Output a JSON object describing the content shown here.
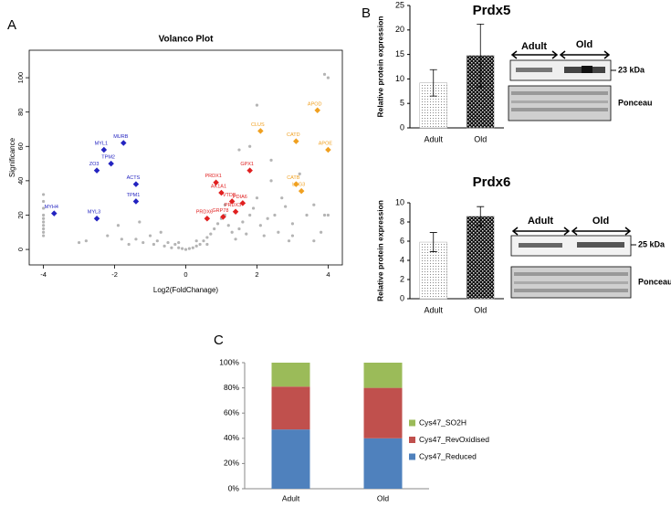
{
  "panel_labels": [
    "A",
    "B",
    "C"
  ],
  "blots": [
    {
      "groups": [
        "Adult",
        "Old"
      ],
      "band": "23 kDa",
      "stain": "Ponceau"
    },
    {
      "groups": [
        "Adult",
        "Old"
      ],
      "band": "25 kDa",
      "stain": "Ponceau"
    }
  ],
  "chart_data": [
    {
      "type": "scatter",
      "title": "Volanco Plot",
      "xlabel": "Log2(FoldChanage)",
      "ylabel": "Significance",
      "xlim": [
        -4.4,
        4.4
      ],
      "ylim": [
        -9,
        116
      ],
      "xticks": [
        -4,
        -2,
        0,
        2,
        4
      ],
      "yticks": [
        0,
        20,
        40,
        60,
        80,
        100
      ],
      "series": [
        {
          "color": "#b4b4b4",
          "x": [
            -4,
            -4,
            -4,
            -4,
            -4,
            -4,
            -4,
            -4,
            -4,
            -4,
            4,
            4,
            3.9,
            3.9,
            -3,
            -2.8,
            -2.2,
            -1.9,
            -1.6,
            -1.4,
            -1.2,
            -1,
            -0.9,
            -0.8,
            -0.6,
            -0.5,
            -0.4,
            -0.3,
            -0.2,
            -0.1,
            0,
            0.1,
            0.2,
            0.3,
            0.4,
            0.5,
            0.6,
            0.7,
            0.8,
            0.9,
            1,
            1.1,
            1.2,
            1.3,
            1.4,
            1.5,
            1.6,
            1.7,
            1.8,
            1.9,
            2,
            2.1,
            2.2,
            2.3,
            2.4,
            2.5,
            2.6,
            2.8,
            3,
            3.2,
            3.4,
            3.6,
            3.8,
            3,
            1.8,
            1.5,
            2.7,
            -0.7,
            0.3,
            1.1,
            2.9,
            3.6,
            2,
            -1.8,
            0.6,
            -0.2,
            -1.3,
            2.4
          ],
          "y": [
            8,
            10,
            12,
            14,
            16,
            18,
            20,
            24,
            28,
            32,
            20,
            100,
            102,
            20,
            4,
            5,
            8,
            14,
            3,
            6,
            4,
            8,
            3,
            5,
            2,
            4,
            1,
            3,
            1,
            0.5,
            0,
            0.5,
            1,
            2,
            3,
            5,
            7,
            9,
            12,
            15,
            18,
            20,
            14,
            10,
            6,
            12,
            16,
            9,
            20,
            24,
            30,
            14,
            8,
            18,
            40,
            20,
            10,
            25,
            15,
            44,
            20,
            26,
            10,
            8,
            60,
            58,
            30,
            10,
            5,
            26,
            5,
            5,
            84,
            6,
            3,
            4,
            16,
            52
          ]
        },
        {
          "color": "#2323c0",
          "x": [
            -3.7,
            -2.5,
            -2.5,
            -2.3,
            -2.1,
            -1.75,
            -1.4,
            -1.4
          ],
          "y": [
            21,
            18,
            46,
            58,
            50,
            62,
            38,
            28
          ],
          "labels": [
            "MYH4",
            "MYL3",
            "ZO3",
            "MYL1",
            "TPM2",
            "MURB",
            "ACTS",
            "TPM1"
          ]
        },
        {
          "color": "#e02020",
          "x": [
            0.85,
            1,
            1.8,
            1.6,
            1.3,
            0.6,
            1.05,
            1.4
          ],
          "y": [
            39,
            33,
            46,
            27,
            28,
            18,
            19,
            22
          ],
          "labels": [
            "PRDX1",
            "AK1A1",
            "GPX1",
            "PDIA6",
            "VTDB",
            "PRDX6",
            "GRP78",
            "PRDX3"
          ]
        },
        {
          "color": "#f0a020",
          "x": [
            2.1,
            3.1,
            3.7,
            4,
            3.1,
            3.25
          ],
          "y": [
            69,
            63,
            81,
            58,
            38,
            34
          ],
          "labels": [
            "CLUS",
            "CATD",
            "APOD",
            "APOE",
            "CATB",
            "LEG3"
          ]
        }
      ]
    },
    {
      "type": "bar",
      "title": "Prdx5",
      "ylabel": "Relative protein expression",
      "categories": [
        "Adult",
        "Old"
      ],
      "values": [
        9.2,
        14.8
      ],
      "errors": [
        2.7,
        6.4
      ],
      "ylim": [
        0,
        25
      ],
      "yticks": [
        0,
        5,
        10,
        15,
        20,
        25
      ]
    },
    {
      "type": "bar",
      "title": "Prdx6",
      "ylabel": "Relative protein expression",
      "categories": [
        "Adult",
        "Old"
      ],
      "values": [
        5.9,
        8.6
      ],
      "errors": [
        1.0,
        1.0
      ],
      "ylim": [
        0,
        10
      ],
      "yticks": [
        0,
        2,
        4,
        6,
        8,
        10
      ]
    },
    {
      "type": "stacked",
      "categories": [
        "Adult",
        "Old"
      ],
      "ylim": [
        0,
        100
      ],
      "yticks": [
        {
          "value": 0,
          "label": "0%"
        },
        {
          "value": 20,
          "label": "20%"
        },
        {
          "value": 40,
          "label": "40%"
        },
        {
          "value": 60,
          "label": "60%"
        },
        {
          "value": 80,
          "label": "80%"
        },
        {
          "value": 100,
          "label": "100%"
        }
      ],
      "series": [
        {
          "name": "Cys47_Reduced",
          "color": "#4f81bd",
          "values": [
            47,
            40
          ]
        },
        {
          "name": "Cys47_RevOxidised",
          "color": "#c0504d",
          "values": [
            34,
            40
          ]
        },
        {
          "name": "Cys47_SO2H",
          "color": "#9bbb59",
          "values": [
            19,
            20
          ]
        }
      ]
    }
  ]
}
